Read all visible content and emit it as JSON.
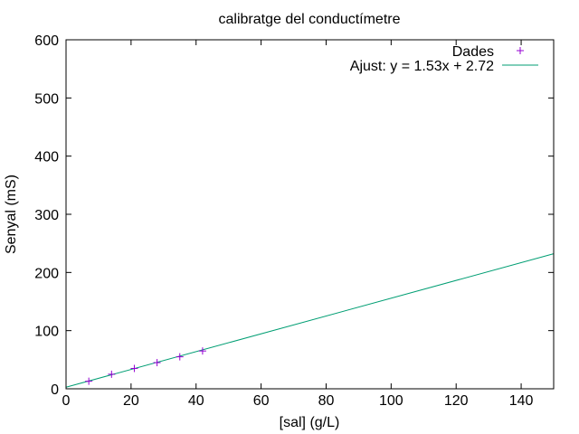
{
  "chart_data": {
    "type": "scatter",
    "title": "calibratge del conductímetre",
    "xlabel": "[sal] (g/L)",
    "ylabel": "Senyal (mS)",
    "xlim": [
      0,
      150
    ],
    "ylim": [
      0,
      600
    ],
    "xticks": [
      0,
      20,
      40,
      60,
      80,
      100,
      120,
      140
    ],
    "yticks": [
      0,
      100,
      200,
      300,
      400,
      500,
      600
    ],
    "grid": false,
    "legend_position": "top-right",
    "series": [
      {
        "name": "Dades",
        "kind": "points",
        "marker": "plus",
        "color": "#9400d3",
        "x": [
          7,
          14,
          21,
          28,
          35,
          42
        ],
        "y": [
          13,
          25,
          35,
          45,
          55,
          65
        ]
      },
      {
        "name": "Ajust: y = 1.53x + 2.72",
        "kind": "line",
        "color": "#009e73",
        "slope": 1.53,
        "intercept": 2.72
      }
    ]
  }
}
